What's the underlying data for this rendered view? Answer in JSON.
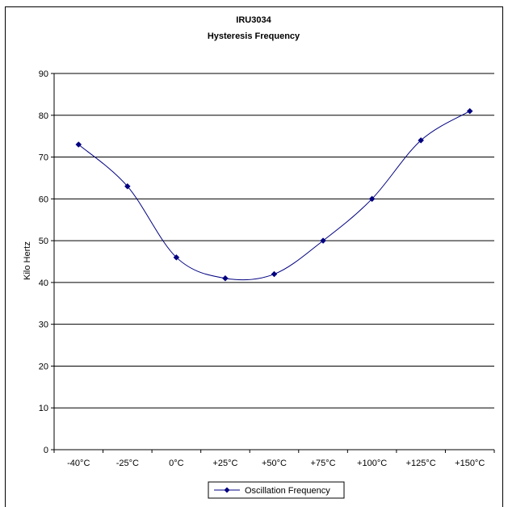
{
  "chart_data": {
    "type": "line",
    "title": "IRU3034",
    "subtitle": "Hysteresis Frequency",
    "xlabel": "",
    "ylabel": "Kilo Hertz",
    "categories": [
      "-40°C",
      "-25°C",
      "0°C",
      "+25°C",
      "+50°C",
      "+75°C",
      "+100°C",
      "+125°C",
      "+150°C"
    ],
    "series": [
      {
        "name": "Oscillation Frequency",
        "values": [
          73,
          63,
          46,
          41,
          42,
          50,
          60,
          74,
          81
        ]
      }
    ],
    "ylim": [
      0,
      90
    ],
    "yticks": [
      "0",
      "10",
      "20",
      "30",
      "40",
      "50",
      "60",
      "70",
      "80",
      "90"
    ],
    "grid": true,
    "legend_position": "bottom",
    "line_color": "#000080",
    "smooth": true
  }
}
